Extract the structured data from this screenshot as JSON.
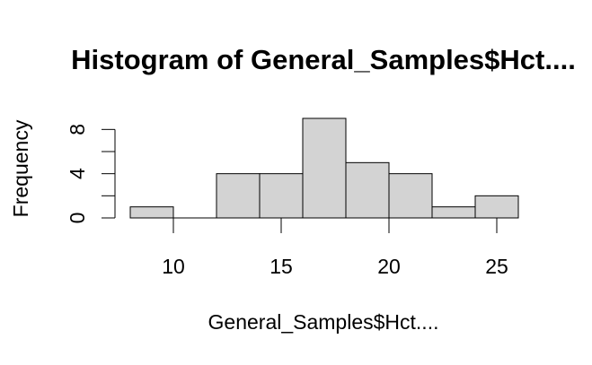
{
  "chart_data": {
    "type": "bar",
    "title": "Histogram of General_Samples$Hct....",
    "xlabel": "General_Samples$Hct....",
    "ylabel": "Frequency",
    "bin_edges": [
      8,
      10,
      12,
      14,
      16,
      18,
      20,
      22,
      24,
      26
    ],
    "values": [
      1,
      0,
      4,
      4,
      9,
      5,
      4,
      1,
      2
    ],
    "x_ticks": [
      10,
      15,
      20,
      25
    ],
    "y_ticks": [
      0,
      4,
      8
    ],
    "y_minor_ticks": [
      0,
      2,
      4,
      6,
      8
    ],
    "xlim": [
      8,
      26
    ],
    "ylim": [
      0,
      9
    ],
    "grid": false,
    "bar_color": "#d3d3d3",
    "edge_color": "#000000"
  }
}
